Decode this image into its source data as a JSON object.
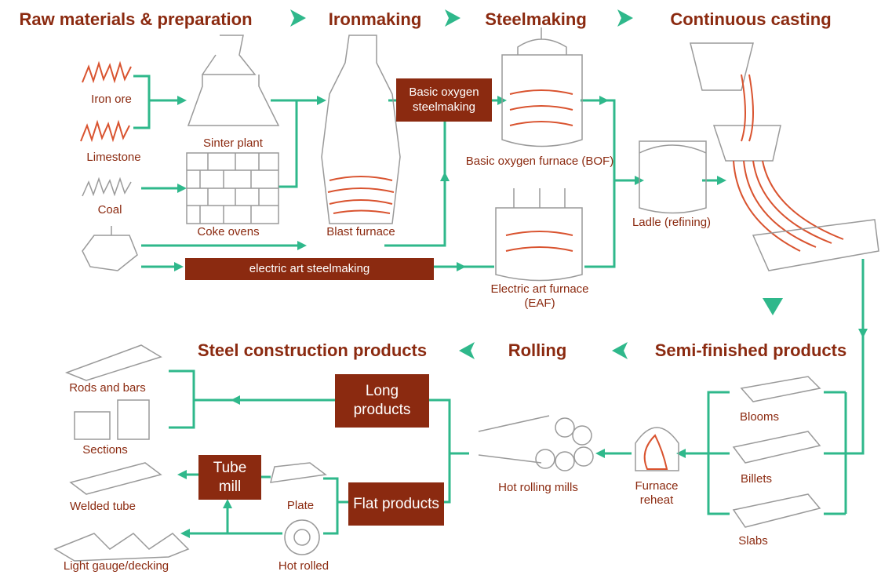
{
  "stages": [
    "Raw materials & preparation",
    "Ironmaking",
    "Steelmaking",
    "Continuous casting",
    "Semi-finished products",
    "Rolling",
    "Steel construction products"
  ],
  "nodes": [
    "Iron ore",
    "Limestone",
    "Coal",
    "Sinter plant",
    "Coke ovens",
    "Blast furnace",
    "Basic oxygen furnace (BOF)",
    "Electric art furnace (EAF)",
    "Ladle (refining)",
    "Blooms",
    "Billets",
    "Slabs",
    "Furnace reheat",
    "Hot rolling mills",
    "Plate",
    "Hot rolled",
    "Rods and bars",
    "Sections",
    "Welded tube",
    "Light gauge/decking"
  ],
  "processes": [
    "Basic oxygen steelmaking",
    "electric art steelmaking",
    "Long products",
    "Flat products",
    "Tube mill"
  ]
}
